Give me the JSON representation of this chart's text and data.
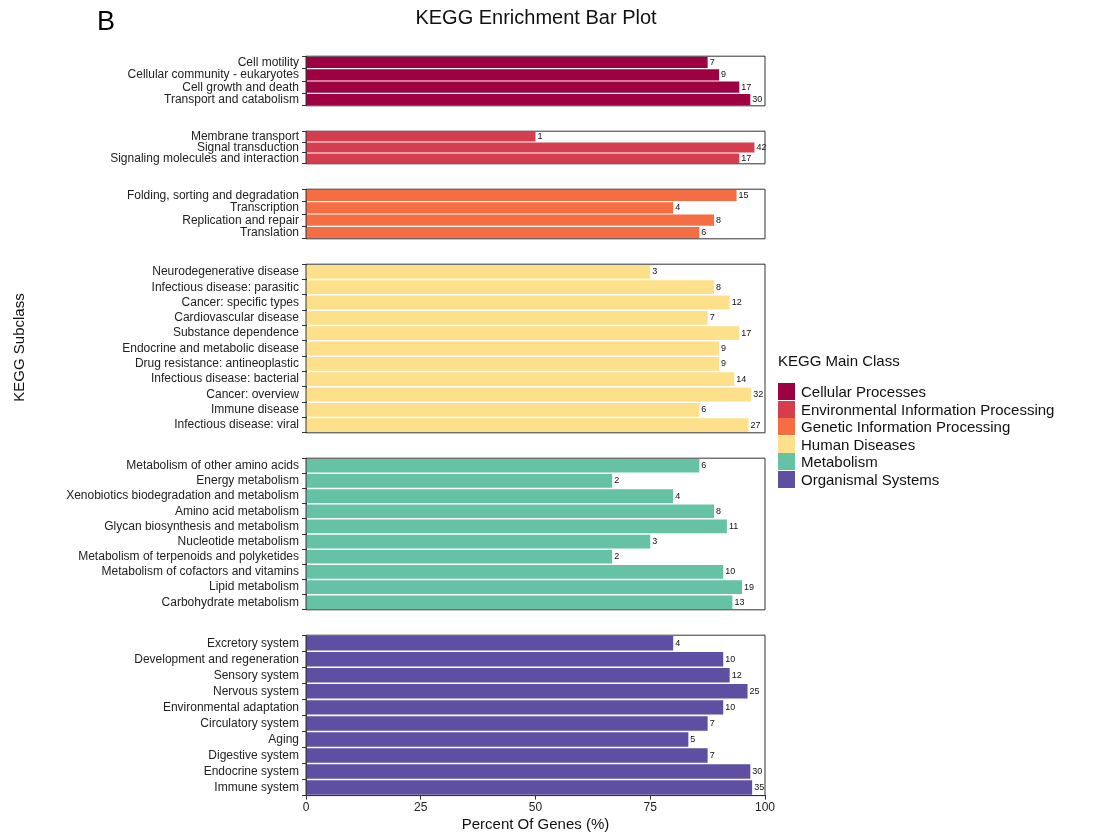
{
  "chart_data": [
    {
      "type": "bar",
      "orientation": "horizontal",
      "title": "KEGG Enrichment Bar Plot",
      "legend_title": "KEGG Main Class",
      "legend": "right",
      "grid": false,
      "tick_labels": "y",
      "xlim": [
        0,
        100
      ],
      "xticks": [
        0,
        25,
        50,
        75,
        100
      ],
      "categories": [
        "Cell motility",
        "Cellular community - eukaryotes",
        "Cell growth and death",
        "Transport and catabolism"
      ],
      "series": [
        {
          "name": "Cellular Processes",
          "color": "#9e0142",
          "values": [
            87.5,
            90,
            94.4,
            96.8
          ]
        }
      ],
      "annotations": [
        "B",
        {
          "text": "7",
          "x": 87.5,
          "y": "Cell motility"
        },
        {
          "text": "9",
          "x": 90,
          "y": "Cellular community - eukaryotes"
        },
        {
          "text": "17",
          "x": 94.4,
          "y": "Cell growth and death"
        },
        {
          "text": "30",
          "x": 96.8,
          "y": "Transport and catabolism"
        }
      ]
    },
    {
      "type": "bar",
      "orientation": "horizontal",
      "legend": "right",
      "grid": false,
      "tick_labels": "y",
      "xlim": [
        0,
        100
      ],
      "xticks": [
        0,
        25,
        50,
        75,
        100
      ],
      "categories": [
        "Membrane transport",
        "Signal transduction",
        "Signaling molecules and interaction"
      ],
      "series": [
        {
          "name": "Environmental Information Processing",
          "color": "#d53e4f",
          "values": [
            50,
            97.7,
            94.4
          ]
        }
      ],
      "annotations": [
        {
          "text": "1",
          "x": 50,
          "y": "Membrane transport"
        },
        {
          "text": "42",
          "x": 97.7,
          "y": "Signal transduction"
        },
        {
          "text": "17",
          "x": 94.4,
          "y": "Signaling molecules and interaction"
        }
      ]
    },
    {
      "type": "bar",
      "orientation": "horizontal",
      "legend": "right",
      "grid": false,
      "tick_labels": "y",
      "xlim": [
        0,
        100
      ],
      "xticks": [
        0,
        25,
        50,
        75,
        100
      ],
      "categories": [
        "Folding, sorting and degradation",
        "Transcription",
        "Replication and repair",
        "Translation"
      ],
      "series": [
        {
          "name": "Genetic Information Processing",
          "color": "#f46d43",
          "values": [
            93.8,
            80,
            88.9,
            85.7
          ]
        }
      ],
      "annotations": [
        {
          "text": "15",
          "x": 93.8,
          "y": "Folding, sorting and degradation"
        },
        {
          "text": "4",
          "x": 80,
          "y": "Transcription"
        },
        {
          "text": "8",
          "x": 88.9,
          "y": "Replication and repair"
        },
        {
          "text": "6",
          "x": 85.7,
          "y": "Translation"
        }
      ]
    },
    {
      "type": "bar",
      "orientation": "horizontal",
      "ylabel": "KEGG Subclass",
      "legend": "right",
      "grid": false,
      "tick_labels": "y",
      "xlim": [
        0,
        100
      ],
      "xticks": [
        0,
        25,
        50,
        75,
        100
      ],
      "categories": [
        "Neurodegenerative disease",
        "Infectious disease: parasitic",
        "Cancer: specific types",
        "Cardiovascular disease",
        "Substance dependence",
        "Endocrine and metabolic disease",
        "Drug resistance: antineoplastic",
        "Infectious disease: bacterial",
        "Cancer: overview",
        "Immune disease",
        "Infectious disease: viral"
      ],
      "series": [
        {
          "name": "Human Diseases",
          "color": "#fee08b",
          "values": [
            75,
            88.9,
            92.3,
            87.5,
            94.4,
            90,
            90,
            93.3,
            97,
            85.7,
            96.4
          ]
        }
      ],
      "annotations": [
        {
          "text": "3",
          "x": 75,
          "y": "Neurodegenerative disease"
        },
        {
          "text": "8",
          "x": 88.9,
          "y": "Infectious disease: parasitic"
        },
        {
          "text": "12",
          "x": 92.3,
          "y": "Cancer: specific types"
        },
        {
          "text": "7",
          "x": 87.5,
          "y": "Cardiovascular disease"
        },
        {
          "text": "17",
          "x": 94.4,
          "y": "Substance dependence"
        },
        {
          "text": "9",
          "x": 90,
          "y": "Endocrine and metabolic disease"
        },
        {
          "text": "9",
          "x": 90,
          "y": "Drug resistance: antineoplastic"
        },
        {
          "text": "14",
          "x": 93.3,
          "y": "Infectious disease: bacterial"
        },
        {
          "text": "32",
          "x": 97,
          "y": "Cancer: overview"
        },
        {
          "text": "6",
          "x": 85.7,
          "y": "Immune disease"
        },
        {
          "text": "27",
          "x": 96.4,
          "y": "Infectious disease: viral"
        }
      ]
    },
    {
      "type": "bar",
      "orientation": "horizontal",
      "legend": "right",
      "grid": false,
      "tick_labels": "y",
      "xlim": [
        0,
        100
      ],
      "xticks": [
        0,
        25,
        50,
        75,
        100
      ],
      "categories": [
        "Metabolism of other amino acids",
        "Energy metabolism",
        "Xenobiotics biodegradation and metabolism",
        "Amino acid metabolism",
        "Glycan biosynthesis and metabolism",
        "Nucleotide metabolism",
        "Metabolism of terpenoids and polyketides",
        "Metabolism of cofactors and vitamins",
        "Lipid metabolism",
        "Carbohydrate metabolism"
      ],
      "series": [
        {
          "name": "Metabolism",
          "color": "#66c2a5",
          "values": [
            85.7,
            66.7,
            80,
            88.9,
            91.7,
            75,
            66.7,
            90.9,
            95,
            92.9
          ]
        }
      ],
      "annotations": [
        {
          "text": "6",
          "x": 85.7,
          "y": "Metabolism of other amino acids"
        },
        {
          "text": "2",
          "x": 66.7,
          "y": "Energy metabolism"
        },
        {
          "text": "4",
          "x": 80,
          "y": "Xenobiotics biodegradation and metabolism"
        },
        {
          "text": "8",
          "x": 88.9,
          "y": "Amino acid metabolism"
        },
        {
          "text": "11",
          "x": 91.7,
          "y": "Glycan biosynthesis and metabolism"
        },
        {
          "text": "3",
          "x": 75,
          "y": "Nucleotide metabolism"
        },
        {
          "text": "2",
          "x": 66.7,
          "y": "Metabolism of terpenoids and polyketides"
        },
        {
          "text": "10",
          "x": 90.9,
          "y": "Metabolism of cofactors and vitamins"
        },
        {
          "text": "19",
          "x": 95,
          "y": "Lipid metabolism"
        },
        {
          "text": "13",
          "x": 92.9,
          "y": "Carbohydrate metabolism"
        }
      ]
    },
    {
      "type": "bar",
      "orientation": "horizontal",
      "xlabel": "Percent Of Genes (%)",
      "legend": "right",
      "grid": false,
      "xlim": [
        0,
        100
      ],
      "xticks": [
        0,
        25,
        50,
        75,
        100
      ],
      "categories": [
        "Excretory system",
        "Development and regeneration",
        "Sensory system",
        "Nervous system",
        "Environmental adaptation",
        "Circulatory system",
        "Aging",
        "Digestive system",
        "Endocrine system",
        "Immune system"
      ],
      "series": [
        {
          "name": "Organismal Systems",
          "color": "#5e4fa2",
          "values": [
            80,
            90.9,
            92.3,
            96.2,
            90.9,
            87.5,
            83.3,
            87.5,
            96.8,
            97.2
          ]
        }
      ],
      "annotations": [
        {
          "text": "4",
          "x": 80,
          "y": "Excretory system"
        },
        {
          "text": "10",
          "x": 90.9,
          "y": "Development and regeneration"
        },
        {
          "text": "12",
          "x": 92.3,
          "y": "Sensory system"
        },
        {
          "text": "25",
          "x": 96.2,
          "y": "Nervous system"
        },
        {
          "text": "10",
          "x": 90.9,
          "y": "Environmental adaptation"
        },
        {
          "text": "7",
          "x": 87.5,
          "y": "Circulatory system"
        },
        {
          "text": "5",
          "x": 83.3,
          "y": "Aging"
        },
        {
          "text": "7",
          "x": 87.5,
          "y": "Digestive system"
        },
        {
          "text": "30",
          "x": 96.8,
          "y": "Endocrine system"
        },
        {
          "text": "35",
          "x": 97.2,
          "y": "Immune system"
        }
      ]
    }
  ]
}
